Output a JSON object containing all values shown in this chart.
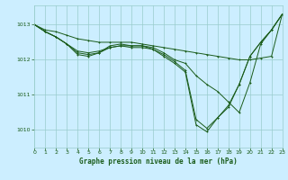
{
  "title": "Graphe pression niveau de la mer (hPa)",
  "bg_color": "#cceeff",
  "grid_color": "#99cccc",
  "line_color": "#1a5c1a",
  "markersize": 2.0,
  "linewidth": 0.7,
  "xlim": [
    0,
    23
  ],
  "ylim": [
    1009.5,
    1013.55
  ],
  "yticks": [
    1010,
    1011,
    1012,
    1013
  ],
  "xticks": [
    0,
    1,
    2,
    3,
    4,
    5,
    6,
    7,
    8,
    9,
    10,
    11,
    12,
    13,
    14,
    15,
    16,
    17,
    18,
    19,
    20,
    21,
    22,
    23
  ],
  "curves": [
    [
      1013.0,
      1012.85,
      1012.8,
      1012.7,
      1012.6,
      1012.55,
      1012.5,
      1012.5,
      1012.5,
      1012.5,
      1012.45,
      1012.4,
      1012.35,
      1012.3,
      1012.25,
      1012.2,
      1012.15,
      1012.1,
      1012.05,
      1012.0,
      1012.0,
      1012.05,
      1012.1,
      1013.3
    ],
    [
      1013.0,
      1012.8,
      1012.65,
      1012.45,
      1012.25,
      1012.2,
      1012.25,
      1012.35,
      1012.4,
      1012.4,
      1012.4,
      1012.35,
      1012.2,
      1012.0,
      1011.9,
      1011.55,
      1011.3,
      1011.1,
      1010.8,
      1010.5,
      1011.35,
      1012.45,
      1012.85,
      1013.3
    ],
    [
      1013.0,
      1012.8,
      1012.65,
      1012.45,
      1012.2,
      1012.15,
      1012.2,
      1012.35,
      1012.4,
      1012.35,
      1012.35,
      1012.3,
      1012.15,
      1011.95,
      1011.7,
      1010.3,
      1010.05,
      1010.35,
      1010.65,
      1011.3,
      1012.1,
      1012.5,
      1012.85,
      1013.3
    ],
    [
      1013.0,
      1012.8,
      1012.65,
      1012.45,
      1012.15,
      1012.1,
      1012.2,
      1012.4,
      1012.45,
      1012.4,
      1012.4,
      1012.3,
      1012.1,
      1011.9,
      1011.65,
      1010.15,
      1009.95,
      1010.35,
      1010.7,
      1011.3,
      1012.1,
      1012.5,
      1012.85,
      1013.3
    ]
  ]
}
